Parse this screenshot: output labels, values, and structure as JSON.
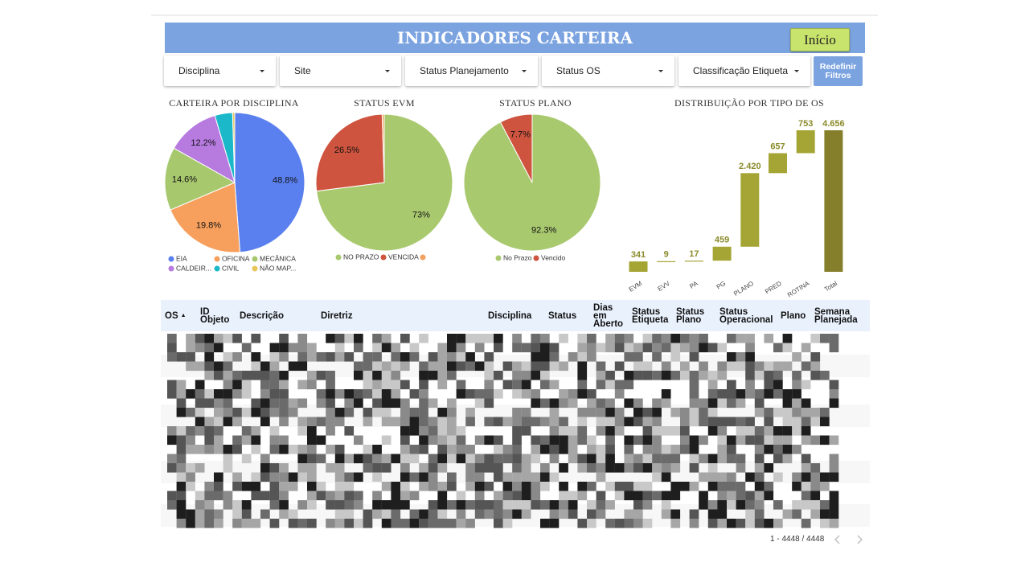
{
  "header": {
    "title": "INDICADORES CARTEIRA",
    "button": "Início"
  },
  "filters": [
    "Disciplina",
    "Site",
    "Status Planejamento",
    "Status OS",
    "Classificação Etiqueta"
  ],
  "reset_button": "Redefinir Filtros",
  "chart_data": [
    {
      "type": "pie",
      "title": "CARTEIRA POR DISCIPLINA",
      "categories": [
        "EIA",
        "OFICINA",
        "MECÂNICA",
        "CALDEIR...",
        "CIVIL",
        "NÃO MAP..."
      ],
      "values": [
        48.8,
        19.8,
        14.6,
        12.2,
        4.1,
        0.5
      ],
      "value_labels": [
        "48.8%",
        "19.8%",
        "14.6%",
        "12.2%",
        null,
        null
      ],
      "colors": [
        "#5a80ef",
        "#f7a05e",
        "#a8c86e",
        "#b77be0",
        "#1bb8c9",
        "#e9c65a"
      ]
    },
    {
      "type": "pie",
      "title": "STATUS EVM",
      "categories": [
        "NO PRAZO",
        "VENCIDA",
        null
      ],
      "values": [
        73,
        26.5,
        0.5
      ],
      "value_labels": [
        "73%",
        "26.5%",
        null
      ],
      "colors": [
        "#a9c96f",
        "#cf543f",
        "#f2a15f"
      ]
    },
    {
      "type": "pie",
      "title": "STATUS PLANO",
      "categories": [
        "No Prazo",
        "Vencido"
      ],
      "values": [
        92.3,
        7.7
      ],
      "value_labels": [
        "92.3%",
        "7.7%"
      ],
      "colors": [
        "#a9c96f",
        "#cf543f"
      ]
    },
    {
      "type": "waterfall",
      "title": "DISTRIBUIÇÃO POR TIPO DE OS",
      "categories": [
        "EVM",
        "EVV",
        "PA",
        "PG",
        "PLANO",
        "PRED",
        "ROTINA",
        "Total"
      ],
      "values": [
        341,
        9,
        17,
        459,
        2420,
        657,
        753,
        4656
      ],
      "value_labels": [
        "341",
        "9",
        "17",
        "459",
        "2.420",
        "657",
        "753",
        "4.656"
      ],
      "color": "#a5a535",
      "total_color": "#857f2c"
    }
  ],
  "table": {
    "columns": [
      "OS",
      "ID Objeto",
      "Descrição",
      "Diretriz",
      "Disciplina",
      "Status",
      "Dias em Aberto",
      "Status Etiqueta",
      "Status Plano",
      "Status Operacional",
      "Plano",
      "Semana Planejada"
    ],
    "pagination": "1 - 4448 / 4448"
  }
}
